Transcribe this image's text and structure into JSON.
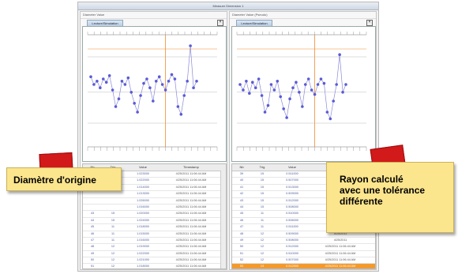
{
  "window": {
    "title": "Measure Dimension 1"
  },
  "left_pane": {
    "header": "Diameter Value",
    "tab_label": "Lecture/Simulation",
    "close_glyph": "×",
    "table": {
      "columns": [
        "Nb",
        "Trig",
        "Value",
        "Timestamp"
      ],
      "rows": [
        [
          "",
          "",
          "1.023000",
          "4/25/2011 11:06:44 AM"
        ],
        [
          "",
          "",
          "1.022000",
          "4/25/2011 11:06:44 AM"
        ],
        [
          "",
          "",
          "1.014000",
          "4/25/2011 11:06:44 AM"
        ],
        [
          "",
          "",
          "1.013000",
          "4/25/2011 11:06:44 AM"
        ],
        [
          "",
          "",
          "1.026000",
          "4/25/2011 11:06:44 AM"
        ],
        [
          "",
          "",
          "1.016000",
          "4/25/2011 11:06:44 AM"
        ],
        [
          "43",
          "15",
          "1.020000",
          "4/25/2011 11:06:44 AM"
        ],
        [
          "44",
          "15",
          "1.024000",
          "4/25/2011 11:06:44 AM"
        ],
        [
          "45",
          "11",
          "1.018000",
          "4/25/2011 11:06:44 AM"
        ],
        [
          "46",
          "11",
          "1.015000",
          "4/25/2011 11:06:44 AM"
        ],
        [
          "47",
          "11",
          "1.016000",
          "4/25/2011 11:06:44 AM"
        ],
        [
          "48",
          "12",
          "1.019000",
          "4/25/2011 11:06:44 AM"
        ],
        [
          "49",
          "12",
          "1.022000",
          "4/25/2011 11:06:44 AM"
        ],
        [
          "50",
          "12",
          "1.021000",
          "4/25/2011 11:06:44 AM"
        ],
        [
          "51",
          "12",
          "1.018000",
          "4/25/2011 11:06:44 AM"
        ],
        [
          "52",
          "12",
          "1.014000",
          "4/25/2011 11:06:44 AM"
        ],
        [
          "53",
          "13",
          "1.016000",
          "4/25/2011 11:06:44 AM"
        ]
      ]
    }
  },
  "right_pane": {
    "header": "Diameter Value (Pseudo)",
    "tab_label": "Lecture/Simulation",
    "close_glyph": "×",
    "table": {
      "columns": [
        "Nb",
        "Trig",
        "Value",
        "Timestamp"
      ],
      "rows": [
        [
          "39",
          "15",
          "0.511000",
          "4/25/2011"
        ],
        [
          "40",
          "15",
          "0.507000",
          "4/25/2011"
        ],
        [
          "41",
          "15",
          "0.513000",
          "4/25/2011"
        ],
        [
          "42",
          "15",
          "0.509000",
          "4/25/2011"
        ],
        [
          "43",
          "15",
          "0.512000",
          "4/25/2011"
        ],
        [
          "44",
          "15",
          "0.508000",
          "4/25/2011"
        ],
        [
          "45",
          "11",
          "0.510000",
          "4/25/2011"
        ],
        [
          "46",
          "11",
          "0.506000",
          "4/25/2011"
        ],
        [
          "47",
          "11",
          "0.511000",
          "4/25/2011"
        ],
        [
          "48",
          "12",
          "0.509000",
          "4/25/2011"
        ],
        [
          "49",
          "12",
          "0.508000",
          "4/25/2011"
        ],
        [
          "50",
          "12",
          "0.512000",
          "4/25/2011 11:06:44 AM"
        ],
        [
          "51",
          "12",
          "0.510000",
          "4/25/2011 11:06:44 AM"
        ],
        [
          "52",
          "12",
          "0.507000",
          "4/25/2011 11:06:44 AM"
        ],
        [
          "53",
          "13",
          "0.512000",
          "4/25/2011 11:06:44 AM"
        ]
      ]
    }
  },
  "callouts": {
    "left": "Diamètre d'origine",
    "right": [
      "Rayon calculé",
      "avec une tolérance",
      "différente"
    ]
  },
  "series_left": [
    0.62,
    0.55,
    0.58,
    0.52,
    0.6,
    0.57,
    0.63,
    0.5,
    0.35,
    0.42,
    0.58,
    0.55,
    0.61,
    0.48,
    0.38,
    0.3,
    0.45,
    0.56,
    0.6,
    0.52,
    0.4,
    0.58,
    0.62,
    0.55,
    0.5,
    0.58,
    0.64,
    0.6,
    0.35,
    0.28,
    0.45,
    0.58,
    0.9,
    0.52,
    0.58
  ],
  "series_right": [
    0.55,
    0.5,
    0.58,
    0.47,
    0.57,
    0.52,
    0.6,
    0.45,
    0.3,
    0.36,
    0.55,
    0.5,
    0.58,
    0.44,
    0.33,
    0.25,
    0.42,
    0.52,
    0.57,
    0.48,
    0.35,
    0.55,
    0.6,
    0.5,
    0.46,
    0.55,
    0.6,
    0.56,
    0.3,
    0.24,
    0.4,
    0.55,
    0.82,
    0.48,
    0.55
  ],
  "colors": {
    "point": "#5a5ad6",
    "line": "#8a8ad8",
    "limit": "#f08a2e",
    "selected_row": "#f29a2e",
    "callout": "#fbe58d",
    "marker": "#d21a1a"
  }
}
